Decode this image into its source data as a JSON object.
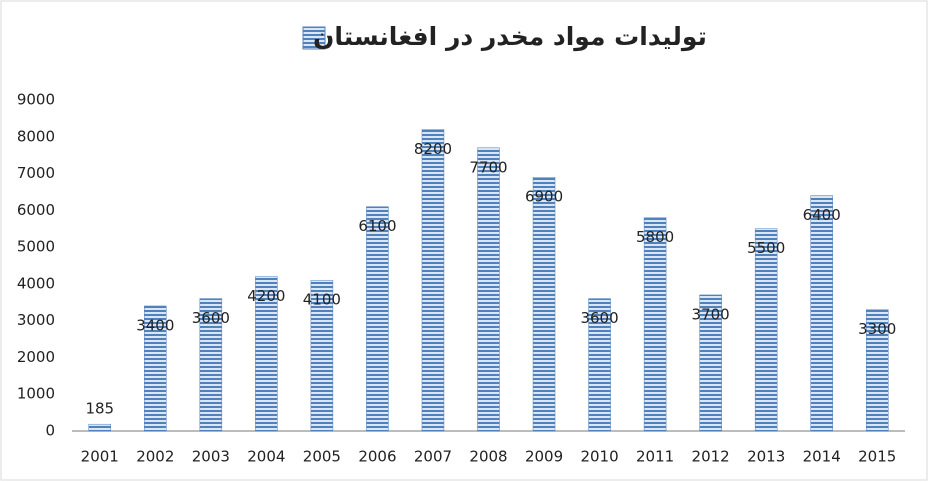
{
  "chart_data": {
    "type": "bar",
    "categories": [
      "2001",
      "2002",
      "2003",
      "2004",
      "2005",
      "2006",
      "2007",
      "2008",
      "2009",
      "2010",
      "2011",
      "2012",
      "2013",
      "2014",
      "2015"
    ],
    "series": [
      {
        "name": "تولیدات مواد مخدر در افغانستان",
        "color": "#4f81bd",
        "values": [
          185,
          3400,
          3600,
          4200,
          4100,
          6100,
          8200,
          7700,
          6900,
          3600,
          5800,
          3700,
          5500,
          6400,
          3300
        ]
      }
    ],
    "ylim": [
      0,
      9000
    ],
    "yticks": [
      0,
      1000,
      2000,
      3000,
      4000,
      5000,
      6000,
      7000,
      8000,
      9000
    ],
    "grid": false,
    "legend": "top"
  }
}
